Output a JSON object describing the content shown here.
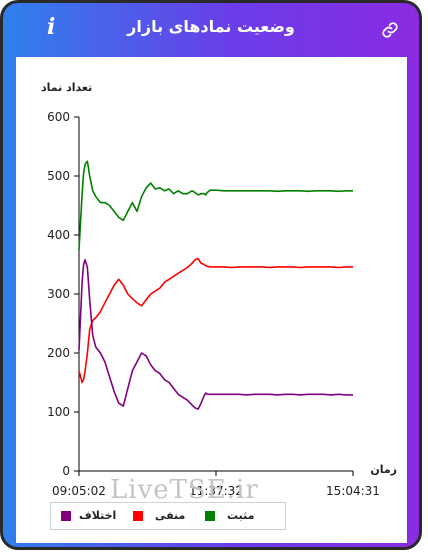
{
  "header": {
    "title": "وضعیت نمادهای بازار",
    "info_glyph": "i",
    "link_icon": "link-icon"
  },
  "watermark": "LiveTSE.ir",
  "colors": {
    "positive": "#008000",
    "negative": "#ff0000",
    "difference": "#800080",
    "axis": "#000000"
  },
  "chart_data": {
    "type": "line",
    "ylabel": "تعداد نماد",
    "xlabel": "زمان",
    "ylim": [
      0,
      600
    ],
    "yticks": [
      0,
      100,
      200,
      300,
      400,
      500,
      600
    ],
    "xtick_labels": [
      "09:05:02",
      "11:37:32",
      "15:04:31"
    ],
    "legend": [
      {
        "name": "مثبت",
        "color": "#008000"
      },
      {
        "name": "منفی",
        "color": "#ff0000"
      },
      {
        "name": "اختلاف",
        "color": "#800080"
      }
    ],
    "x_note": "x values are session minutes after 09:05:02",
    "x": [
      0,
      2,
      4,
      6,
      8,
      11,
      14,
      18,
      22,
      28,
      34,
      40,
      46,
      52,
      58,
      64,
      70,
      76,
      82,
      88,
      94,
      100,
      106,
      112,
      118,
      124,
      130,
      136,
      142,
      148,
      152,
      156,
      160,
      164,
      166,
      168,
      172,
      180,
      190,
      200,
      210,
      220,
      230,
      240,
      250,
      260,
      270,
      280,
      290,
      300,
      310,
      320,
      330,
      340,
      350,
      359
    ],
    "series": [
      {
        "name": "مثبت",
        "values": [
          375,
          420,
          470,
          505,
          520,
          525,
          500,
          475,
          465,
          455,
          455,
          450,
          440,
          430,
          425,
          440,
          455,
          440,
          465,
          480,
          488,
          478,
          480,
          475,
          478,
          470,
          475,
          470,
          470,
          475,
          472,
          468,
          470,
          470,
          468,
          472,
          476,
          476,
          475,
          475,
          475,
          475,
          475,
          475,
          475,
          474,
          475,
          475,
          475,
          474,
          475,
          475,
          475,
          474,
          475,
          475
        ]
      },
      {
        "name": "منفی",
        "values": [
          170,
          160,
          150,
          155,
          170,
          200,
          240,
          255,
          260,
          270,
          285,
          300,
          315,
          325,
          315,
          300,
          292,
          285,
          280,
          290,
          300,
          305,
          310,
          320,
          325,
          330,
          335,
          340,
          345,
          352,
          358,
          360,
          352,
          350,
          348,
          347,
          346,
          346,
          346,
          345,
          346,
          346,
          346,
          346,
          345,
          346,
          346,
          346,
          345,
          346,
          346,
          346,
          346,
          345,
          346,
          346
        ]
      },
      {
        "name": "اختلاف",
        "values": [
          205,
          260,
          320,
          350,
          358,
          345,
          290,
          230,
          210,
          200,
          185,
          160,
          135,
          115,
          110,
          140,
          170,
          185,
          200,
          195,
          180,
          170,
          165,
          155,
          150,
          140,
          130,
          125,
          120,
          112,
          107,
          105,
          115,
          128,
          132,
          130,
          130,
          130,
          130,
          130,
          130,
          129,
          130,
          130,
          130,
          129,
          130,
          130,
          129,
          130,
          130,
          130,
          129,
          130,
          129,
          129
        ]
      }
    ]
  }
}
